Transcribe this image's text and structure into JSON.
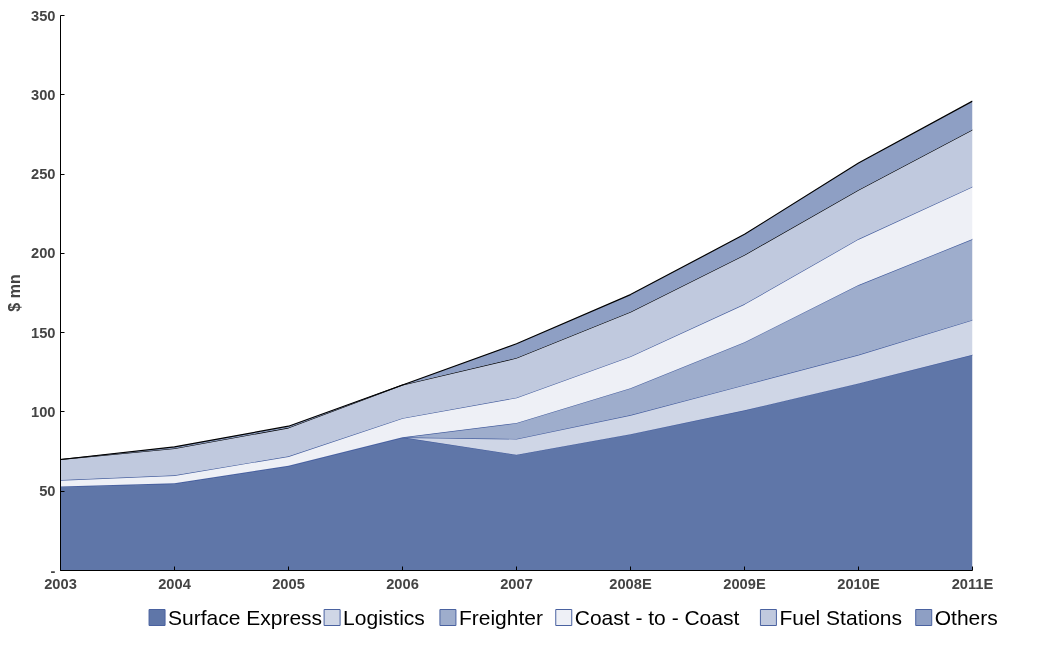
{
  "chart_data": {
    "type": "area",
    "stacked": true,
    "ylabel": "$ mn",
    "categories": [
      "2003",
      "2004",
      "2005",
      "2006",
      "2007",
      "2008E",
      "2009E",
      "2010E",
      "2011E"
    ],
    "series": [
      {
        "name": "Surface Express",
        "color": "#5f76a8",
        "values": [
          53,
          55,
          66,
          84,
          73,
          86,
          101,
          118,
          136
        ]
      },
      {
        "name": "Logistics",
        "color": "#cfd6e6",
        "values": [
          0,
          0,
          0,
          0,
          10,
          12,
          16,
          18,
          22
        ]
      },
      {
        "name": "Freighter",
        "color": "#9eadcc",
        "values": [
          0,
          0,
          0,
          0,
          10,
          17,
          27,
          44,
          51
        ]
      },
      {
        "name": "Coast - to - Coast",
        "color": "#eef0f6",
        "values": [
          4,
          5,
          6,
          12,
          16,
          20,
          24,
          29,
          33
        ]
      },
      {
        "name": "Fuel Stations",
        "color": "#c0c9de",
        "values": [
          13,
          17,
          18,
          21,
          25,
          28,
          31,
          31,
          36
        ]
      },
      {
        "name": "Others",
        "color": "#8e9fc4",
        "values": [
          0,
          1,
          1,
          0,
          9,
          11,
          13,
          17,
          18
        ]
      }
    ],
    "ylim": [
      0,
      350
    ],
    "yticks": [
      {
        "value": 0,
        "label": "-"
      },
      50,
      100,
      150,
      200,
      250,
      300,
      350
    ],
    "grid": false,
    "legend": "bottom"
  }
}
